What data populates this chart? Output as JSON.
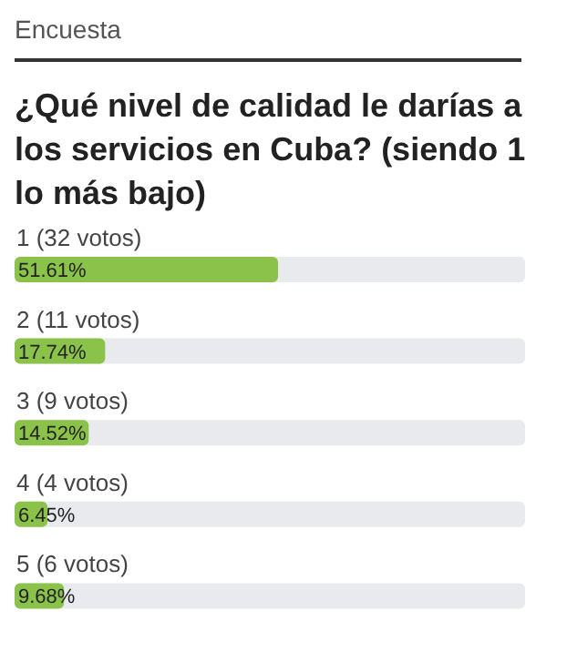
{
  "chart_data": {
    "type": "bar",
    "orientation": "horizontal",
    "subtitle": "Encuesta",
    "title": "¿Qué nivel de calidad le darías a los servicios en Cuba? (siendo 1 lo más bajo)",
    "categories": [
      "1 (32 votos)",
      "2 (11 votos)",
      "3 (9 votos)",
      "4 (4 votos)",
      "5 (6 votos)"
    ],
    "values": [
      51.61,
      17.74,
      14.52,
      6.45,
      9.68
    ],
    "value_labels": [
      "51.61%",
      "17.74%",
      "14.52%",
      "6.45%",
      "9.68%"
    ],
    "color": "#8bc34a",
    "xlim": [
      0,
      100
    ],
    "tick_labels": false,
    "grid": false,
    "legend": false
  }
}
